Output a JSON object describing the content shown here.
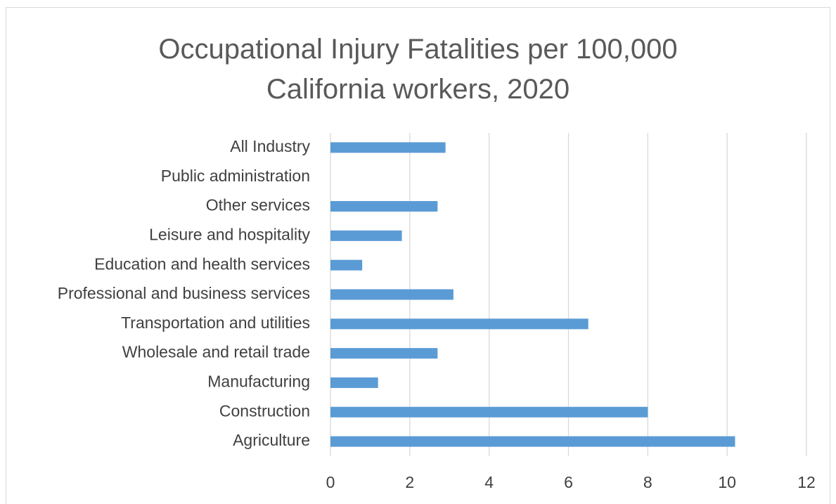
{
  "chart_data": {
    "type": "barh",
    "title": "Occupational Injury Fatalities per 100,000 California workers, 2020",
    "categories": [
      "Agriculture",
      "Construction",
      "Manufacturing",
      "Wholesale and retail trade",
      "Transportation and utilities",
      "Professional and business services",
      "Education and health services",
      "Leisure and hospitality",
      "Other services",
      "Public administration",
      "All Industry"
    ],
    "values": [
      10.2,
      8.0,
      1.2,
      2.7,
      6.5,
      3.1,
      0.8,
      1.8,
      2.7,
      null,
      2.9
    ],
    "color": "#5b9bd5",
    "xlim": [
      0,
      12
    ],
    "xticks": [
      0,
      2,
      4,
      6,
      8,
      10,
      12
    ],
    "grid": true
  }
}
